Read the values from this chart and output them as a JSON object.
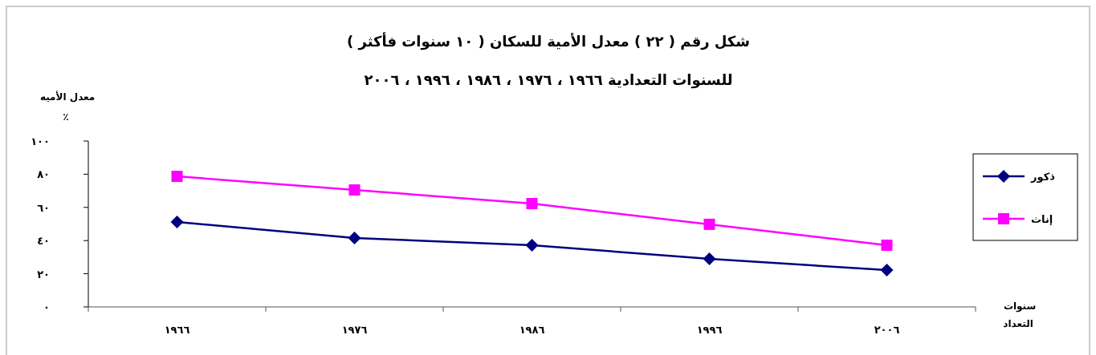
{
  "chart_data": {
    "type": "line",
    "title": "شكل رقم ( ٢٢ ) معدل الأمية للسكان ( ١٠ سنوات فأكثر )",
    "subtitle": "للسنوات التعدادية ١٩٦٦ ، ١٩٧٦ ، ١٩٨٦ ، ١٩٩٦ ، ٢٠٠٦",
    "ylabel": "معدل الأميه ٪",
    "xlabel": "سنوات التعداد",
    "categories": [
      "١٩٦٦",
      "١٩٧٦",
      "١٩٨٦",
      "١٩٩٦",
      "٢٠٠٦"
    ],
    "series": [
      {
        "name": "ذكور",
        "color": "#000080",
        "marker": "diamond",
        "values": [
          51.2,
          41.5,
          37.2,
          29.0,
          22.2
        ]
      },
      {
        "name": "إناث",
        "color": "#ff00ff",
        "marker": "square",
        "values": [
          78.7,
          70.5,
          62.3,
          49.8,
          37.2
        ]
      }
    ],
    "ylim": [
      0,
      100
    ],
    "yticks": [
      {
        "value": 0,
        "label": "٠"
      },
      {
        "value": 20,
        "label": "٢٠"
      },
      {
        "value": 40,
        "label": "٤٠"
      },
      {
        "value": 60,
        "label": "٦٠"
      },
      {
        "value": 80,
        "label": "٨٠"
      },
      {
        "value": 100,
        "label": "١٠٠"
      }
    ],
    "legend": "right",
    "grid": false
  }
}
